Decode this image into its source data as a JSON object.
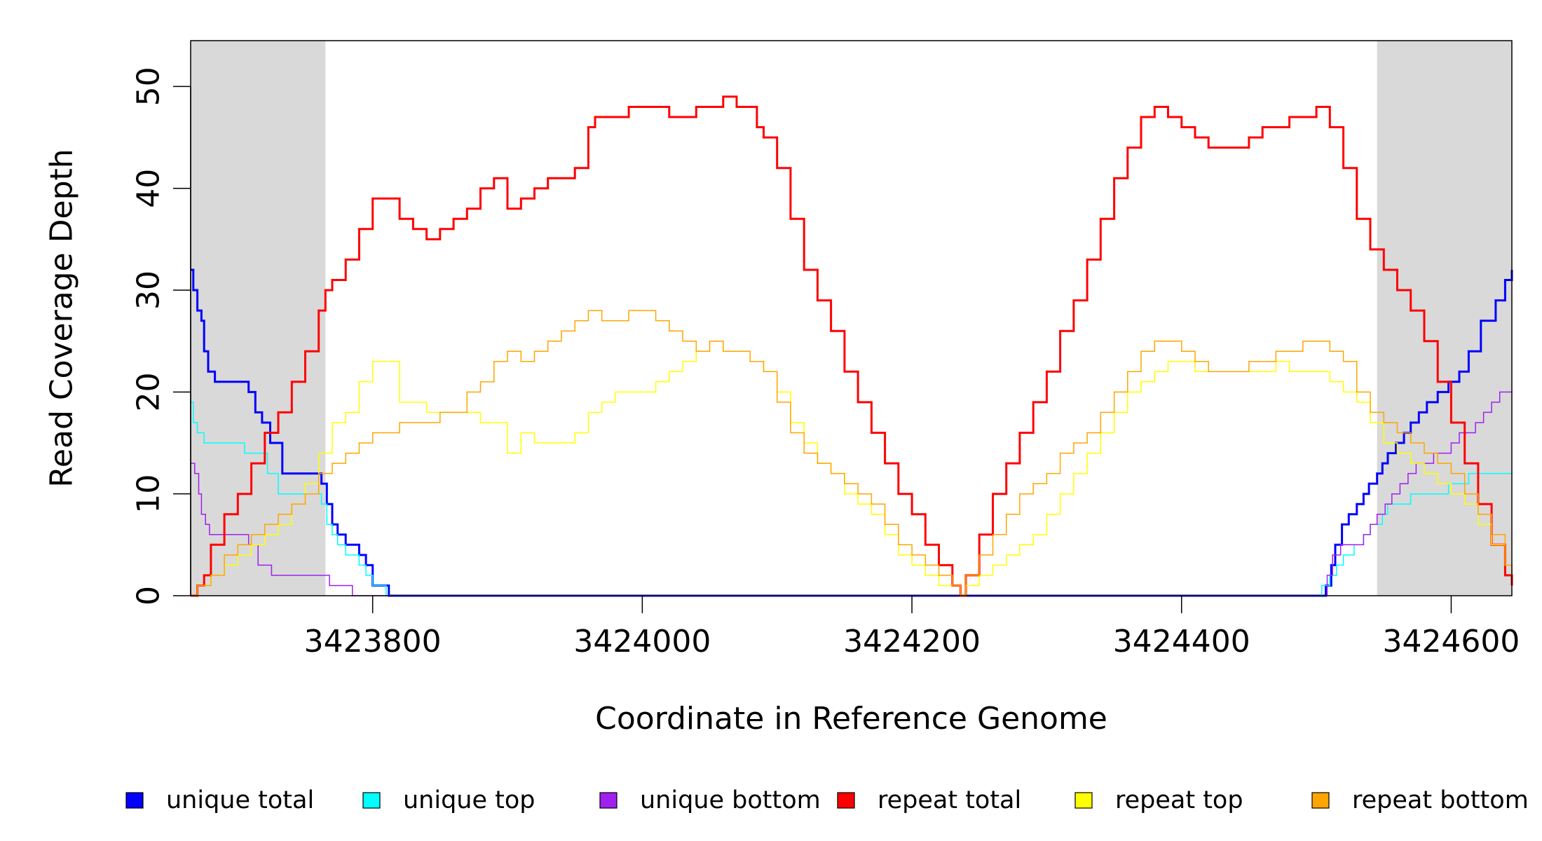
{
  "chart_data": {
    "type": "line",
    "title": "",
    "xlabel": "Coordinate in Reference Genome",
    "ylabel": "Read Coverage Depth",
    "xlim": [
      3423665,
      3424645
    ],
    "ylim": [
      0,
      54.5
    ],
    "x_ticks": [
      3423800,
      3424000,
      3424200,
      3424400,
      3424600
    ],
    "x_tick_labels": [
      "3423800",
      "3424000",
      "3424200",
      "3424400",
      "3424600"
    ],
    "y_ticks": [
      0,
      10,
      20,
      30,
      40,
      50
    ],
    "y_tick_labels": [
      "0",
      "10",
      "20",
      "30",
      "40",
      "50"
    ],
    "shaded_regions": [
      [
        3423665,
        3423765
      ],
      [
        3424545,
        3424645
      ]
    ],
    "shade_color": "#d9d9d9",
    "legend_position": "bottom",
    "series": [
      {
        "name": "unique total",
        "color": "#0000ff",
        "line_width": 2,
        "x": [
          3423665,
          3423667,
          3423670,
          3423673,
          3423675,
          3423678,
          3423683,
          3423687,
          3423700,
          3423708,
          3423713,
          3423718,
          3423724,
          3423733,
          3423752,
          3423762,
          3423766,
          3423770,
          3423774,
          3423780,
          3423790,
          3423795,
          3423800,
          3423810,
          3423812,
          3424500,
          3424507,
          3424511,
          3424514,
          3424519,
          3424524,
          3424530,
          3424535,
          3424539,
          3424545,
          3424549,
          3424553,
          3424559,
          3424565,
          3424570,
          3424576,
          3424582,
          3424590,
          3424598,
          3424606,
          3424613,
          3424622,
          3424633,
          3424640,
          3424645
        ],
        "y": [
          32,
          30,
          28,
          27,
          24,
          22,
          21,
          21,
          21,
          20,
          18,
          17,
          15,
          12,
          12,
          11,
          9,
          7,
          6,
          5,
          4,
          3,
          1,
          1,
          0,
          0,
          1,
          3,
          5,
          7,
          8,
          9,
          10,
          11,
          12,
          13,
          14,
          15,
          16,
          17,
          18,
          19,
          20,
          21,
          22,
          24,
          27,
          29,
          31,
          32
        ]
      },
      {
        "name": "unique top",
        "color": "#00ffff",
        "line_width": 1,
        "x": [
          3423665,
          3423667,
          3423670,
          3423673,
          3423675,
          3423685,
          3423705,
          3423722,
          3423730,
          3423752,
          3423762,
          3423766,
          3423770,
          3423774,
          3423780,
          3423790,
          3423795,
          3423800,
          3423810,
          3423812,
          3424504,
          3424510,
          3424515,
          3424520,
          3424528,
          3424535,
          3424540,
          3424549,
          3424553,
          3424559,
          3424565,
          3424570,
          3424580,
          3424590,
          3424598,
          3424606,
          3424613,
          3424622,
          3424633,
          3424645
        ],
        "y": [
          19,
          17,
          16,
          16,
          15,
          15,
          14,
          12,
          10,
          10,
          9,
          7,
          6,
          5,
          4,
          3,
          2,
          1,
          0,
          0,
          1,
          2,
          3,
          4,
          5,
          6,
          7,
          8,
          9,
          9,
          9,
          10,
          10,
          10,
          11,
          11,
          12,
          12,
          12,
          12
        ]
      },
      {
        "name": "unique bottom",
        "color": "#a020f0",
        "line_width": 1,
        "x": [
          3423665,
          3423668,
          3423671,
          3423673,
          3423676,
          3423679,
          3423683,
          3423700,
          3423708,
          3423715,
          3423725,
          3423752,
          3423768,
          3423781,
          3423785,
          3424504,
          3424508,
          3424512,
          3424518,
          3424530,
          3424535,
          3424540,
          3424545,
          3424551,
          3424556,
          3424562,
          3424568,
          3424574,
          3424580,
          3424587,
          3424593,
          3424600,
          3424606,
          3424612,
          3424618,
          3424624,
          3424630,
          3424636,
          3424645
        ],
        "y": [
          13,
          12,
          10,
          8,
          7,
          6,
          6,
          6,
          5,
          3,
          2,
          2,
          1,
          1,
          0,
          0,
          2,
          4,
          5,
          5,
          6,
          7,
          8,
          9,
          10,
          11,
          12,
          13,
          13,
          14,
          14,
          15,
          16,
          16,
          17,
          18,
          19,
          20,
          20
        ]
      },
      {
        "name": "repeat total",
        "color": "#ff0000",
        "line_width": 2,
        "x": [
          3423665,
          3423670,
          3423675,
          3423680,
          3423690,
          3423700,
          3423710,
          3423720,
          3423730,
          3423740,
          3423750,
          3423760,
          3423765,
          3423770,
          3423780,
          3423790,
          3423800,
          3423810,
          3423820,
          3423830,
          3423840,
          3423850,
          3423860,
          3423870,
          3423880,
          3423890,
          3423900,
          3423910,
          3423920,
          3423930,
          3423940,
          3423950,
          3423960,
          3423965,
          3423980,
          3423990,
          3424000,
          3424010,
          3424020,
          3424030,
          3424040,
          3424050,
          3424060,
          3424070,
          3424080,
          3424085,
          3424090,
          3424100,
          3424110,
          3424120,
          3424130,
          3424140,
          3424150,
          3424160,
          3424170,
          3424180,
          3424190,
          3424200,
          3424210,
          3424220,
          3424230,
          3424236,
          3424240,
          3424250,
          3424260,
          3424270,
          3424280,
          3424290,
          3424300,
          3424310,
          3424320,
          3424330,
          3424340,
          3424350,
          3424360,
          3424370,
          3424380,
          3424390,
          3424400,
          3424410,
          3424420,
          3424430,
          3424440,
          3424450,
          3424460,
          3424470,
          3424480,
          3424490,
          3424500,
          3424510,
          3424520,
          3424530,
          3424540,
          3424550,
          3424560,
          3424570,
          3424580,
          3424590,
          3424600,
          3424610,
          3424620,
          3424630,
          3424640,
          3424645
        ],
        "y": [
          0,
          1,
          2,
          5,
          8,
          10,
          13,
          16,
          18,
          21,
          24,
          28,
          30,
          31,
          33,
          36,
          39,
          39,
          37,
          36,
          35,
          36,
          37,
          38,
          40,
          41,
          38,
          39,
          40,
          41,
          41,
          42,
          46,
          47,
          47,
          48,
          48,
          48,
          47,
          47,
          48,
          48,
          49,
          48,
          48,
          46,
          45,
          42,
          37,
          32,
          29,
          26,
          22,
          19,
          16,
          13,
          10,
          8,
          5,
          3,
          1,
          0,
          2,
          6,
          10,
          13,
          16,
          19,
          22,
          26,
          29,
          33,
          37,
          41,
          44,
          47,
          48,
          47,
          46,
          45,
          44,
          44,
          44,
          45,
          46,
          46,
          47,
          47,
          48,
          46,
          42,
          37,
          34,
          32,
          30,
          28,
          25,
          21,
          17,
          13,
          9,
          5,
          2,
          1
        ]
      },
      {
        "name": "repeat top",
        "color": "#ffff00",
        "line_width": 1,
        "x": [
          3423665,
          3423670,
          3423680,
          3423690,
          3423700,
          3423710,
          3423720,
          3423730,
          3423740,
          3423750,
          3423760,
          3423770,
          3423780,
          3423790,
          3423800,
          3423810,
          3423820,
          3423830,
          3423840,
          3423850,
          3423860,
          3423870,
          3423880,
          3423890,
          3423900,
          3423910,
          3423920,
          3423930,
          3423940,
          3423950,
          3423960,
          3423970,
          3423980,
          3423990,
          3424000,
          3424010,
          3424020,
          3424030,
          3424040,
          3424050,
          3424060,
          3424070,
          3424080,
          3424090,
          3424100,
          3424110,
          3424120,
          3424130,
          3424140,
          3424150,
          3424160,
          3424170,
          3424180,
          3424190,
          3424200,
          3424210,
          3424220,
          3424230,
          3424236,
          3424240,
          3424250,
          3424260,
          3424270,
          3424280,
          3424290,
          3424300,
          3424310,
          3424320,
          3424330,
          3424340,
          3424350,
          3424360,
          3424370,
          3424380,
          3424390,
          3424400,
          3424410,
          3424420,
          3424430,
          3424440,
          3424450,
          3424460,
          3424470,
          3424480,
          3424490,
          3424500,
          3424510,
          3424520,
          3424530,
          3424540,
          3424550,
          3424560,
          3424570,
          3424580,
          3424590,
          3424600,
          3424610,
          3424620,
          3424630,
          3424640,
          3424645
        ],
        "y": [
          0,
          1,
          2,
          3,
          4,
          5,
          6,
          7,
          9,
          11,
          14,
          17,
          18,
          21,
          23,
          23,
          19,
          19,
          18,
          18,
          18,
          18,
          17,
          17,
          14,
          16,
          15,
          15,
          15,
          16,
          18,
          19,
          20,
          20,
          20,
          21,
          22,
          23,
          24,
          25,
          24,
          24,
          23,
          22,
          20,
          17,
          15,
          13,
          12,
          10,
          9,
          8,
          6,
          4,
          3,
          2,
          1,
          1,
          0,
          1,
          2,
          3,
          4,
          5,
          6,
          8,
          10,
          12,
          14,
          16,
          18,
          20,
          21,
          22,
          23,
          23,
          22,
          22,
          22,
          22,
          22,
          22,
          23,
          22,
          22,
          22,
          21,
          20,
          19,
          17,
          15,
          14,
          13,
          12,
          11,
          10,
          9,
          7,
          5,
          3,
          2
        ]
      },
      {
        "name": "repeat bottom",
        "color": "#ffa500",
        "line_width": 1,
        "x": [
          3423665,
          3423670,
          3423680,
          3423690,
          3423700,
          3423710,
          3423720,
          3423730,
          3423740,
          3423750,
          3423760,
          3423770,
          3423780,
          3423790,
          3423800,
          3423810,
          3423820,
          3423830,
          3423840,
          3423850,
          3423860,
          3423870,
          3423880,
          3423890,
          3423900,
          3423910,
          3423920,
          3423930,
          3423940,
          3423950,
          3423960,
          3423970,
          3423980,
          3423990,
          3424000,
          3424010,
          3424020,
          3424030,
          3424040,
          3424050,
          3424060,
          3424070,
          3424080,
          3424090,
          3424100,
          3424110,
          3424120,
          3424130,
          3424140,
          3424150,
          3424160,
          3424170,
          3424180,
          3424190,
          3424200,
          3424210,
          3424220,
          3424230,
          3424236,
          3424240,
          3424250,
          3424260,
          3424270,
          3424280,
          3424290,
          3424300,
          3424310,
          3424320,
          3424330,
          3424340,
          3424350,
          3424360,
          3424370,
          3424380,
          3424390,
          3424400,
          3424410,
          3424420,
          3424430,
          3424440,
          3424450,
          3424460,
          3424470,
          3424480,
          3424490,
          3424500,
          3424510,
          3424520,
          3424530,
          3424540,
          3424550,
          3424560,
          3424570,
          3424580,
          3424590,
          3424600,
          3424610,
          3424620,
          3424630,
          3424640,
          3424645
        ],
        "y": [
          0,
          1,
          2,
          4,
          5,
          6,
          7,
          8,
          9,
          10,
          12,
          13,
          14,
          15,
          16,
          16,
          17,
          17,
          17,
          18,
          18,
          20,
          21,
          23,
          24,
          23,
          24,
          25,
          26,
          27,
          28,
          27,
          27,
          28,
          28,
          27,
          26,
          25,
          24,
          25,
          24,
          24,
          23,
          22,
          19,
          16,
          14,
          13,
          12,
          11,
          10,
          9,
          7,
          5,
          4,
          3,
          2,
          1,
          0,
          2,
          4,
          6,
          8,
          10,
          11,
          12,
          14,
          15,
          16,
          18,
          20,
          22,
          24,
          25,
          25,
          24,
          23,
          22,
          22,
          22,
          23,
          23,
          24,
          24,
          25,
          25,
          24,
          23,
          20,
          18,
          17,
          16,
          15,
          14,
          13,
          12,
          10,
          8,
          6,
          3,
          2
        ]
      }
    ]
  }
}
